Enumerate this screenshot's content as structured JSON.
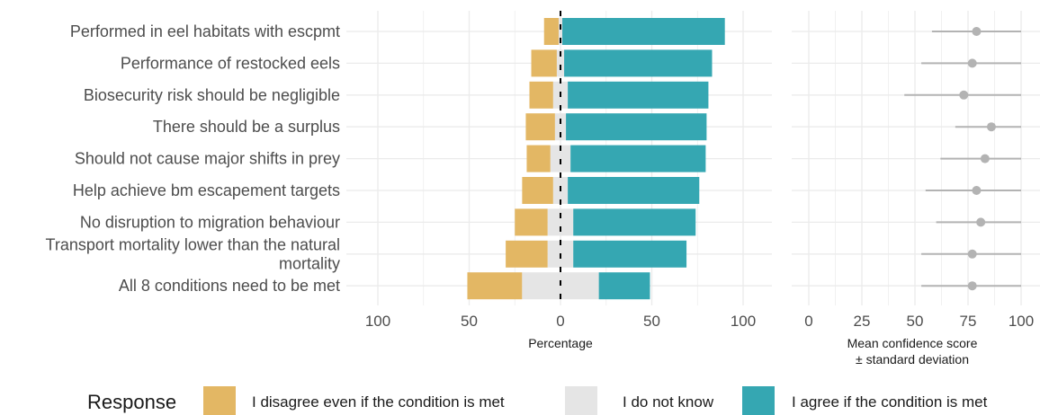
{
  "chart_data": [
    {
      "type": "bar",
      "subtype": "diverging-stacked",
      "categories": [
        "Performed in eel habitats with escpmt",
        "Performance of restocked eels",
        "Biosecurity risk should be negligible",
        "There should be a surplus",
        "Should not cause major shifts in prey",
        "Help achieve bm escapement targets",
        "No disruption to migration behaviour",
        "Transport mortality lower than the natural mortality",
        "All 8 conditions need to be met"
      ],
      "category_lines": [
        [
          "Performed in eel habitats with escpmt"
        ],
        [
          "Performance of restocked eels"
        ],
        [
          "Biosecurity risk should be negligible"
        ],
        [
          "There should be a surplus"
        ],
        [
          "Should not cause major shifts in prey"
        ],
        [
          "Help achieve bm escapement targets"
        ],
        [
          "No disruption to migration behaviour"
        ],
        [
          "Transport mortality lower than the natural",
          "mortality"
        ],
        [
          "All 8 conditions need to be met"
        ]
      ],
      "series": [
        {
          "name": "I disagree even if the condition is met",
          "color": "#E3B764",
          "values": [
            8,
            14,
            13,
            16,
            13,
            17,
            18,
            23,
            30
          ]
        },
        {
          "name": "I do not know",
          "color": "#E5E5E5",
          "values": [
            2,
            4,
            8,
            6,
            11,
            8,
            14,
            14,
            42
          ]
        },
        {
          "name": "I agree if the condition is met",
          "color": "#35A7B2",
          "values": [
            89,
            81,
            77,
            77,
            74,
            72,
            67,
            62,
            28
          ]
        }
      ],
      "xlabel": "Percentage",
      "xticks": [
        -100,
        -50,
        0,
        50,
        100
      ],
      "xtick_labels": [
        "100",
        "50",
        "0",
        "50",
        "100"
      ],
      "xlim": [
        -105,
        115
      ],
      "grid": true
    },
    {
      "type": "scatter",
      "subtype": "point-range",
      "categories": [
        "Performed in eel habitats with escpmt",
        "Performance of restocked eels",
        "Biosecurity risk should be negligible",
        "There should be a surplus",
        "Should not cause major shifts in prey",
        "Help achieve bm escapement targets",
        "No disruption to migration behaviour",
        "Transport mortality lower than the natural mortality",
        "All 8 conditions need to be met"
      ],
      "mean": [
        79,
        77,
        73,
        86,
        83,
        79,
        81,
        77,
        77
      ],
      "sd": [
        21,
        24,
        28,
        17,
        21,
        24,
        21,
        24,
        24
      ],
      "point_color": "#B3B3B3",
      "xlabel_lines": [
        "Mean confidence score",
        "± standard deviation"
      ],
      "xticks": [
        0,
        25,
        50,
        75,
        100
      ],
      "xtick_labels": [
        "0",
        "25",
        "50",
        "75",
        "100"
      ],
      "xlim": [
        -5,
        105
      ],
      "grid": true
    }
  ],
  "legend": {
    "title": "Response",
    "position": "bottom",
    "items": [
      {
        "label": "I disagree even if the condition is met",
        "color": "#E3B764"
      },
      {
        "label": "I do not know",
        "color": "#E5E5E5"
      },
      {
        "label": "I agree if the condition is met",
        "color": "#35A7B2"
      }
    ]
  }
}
